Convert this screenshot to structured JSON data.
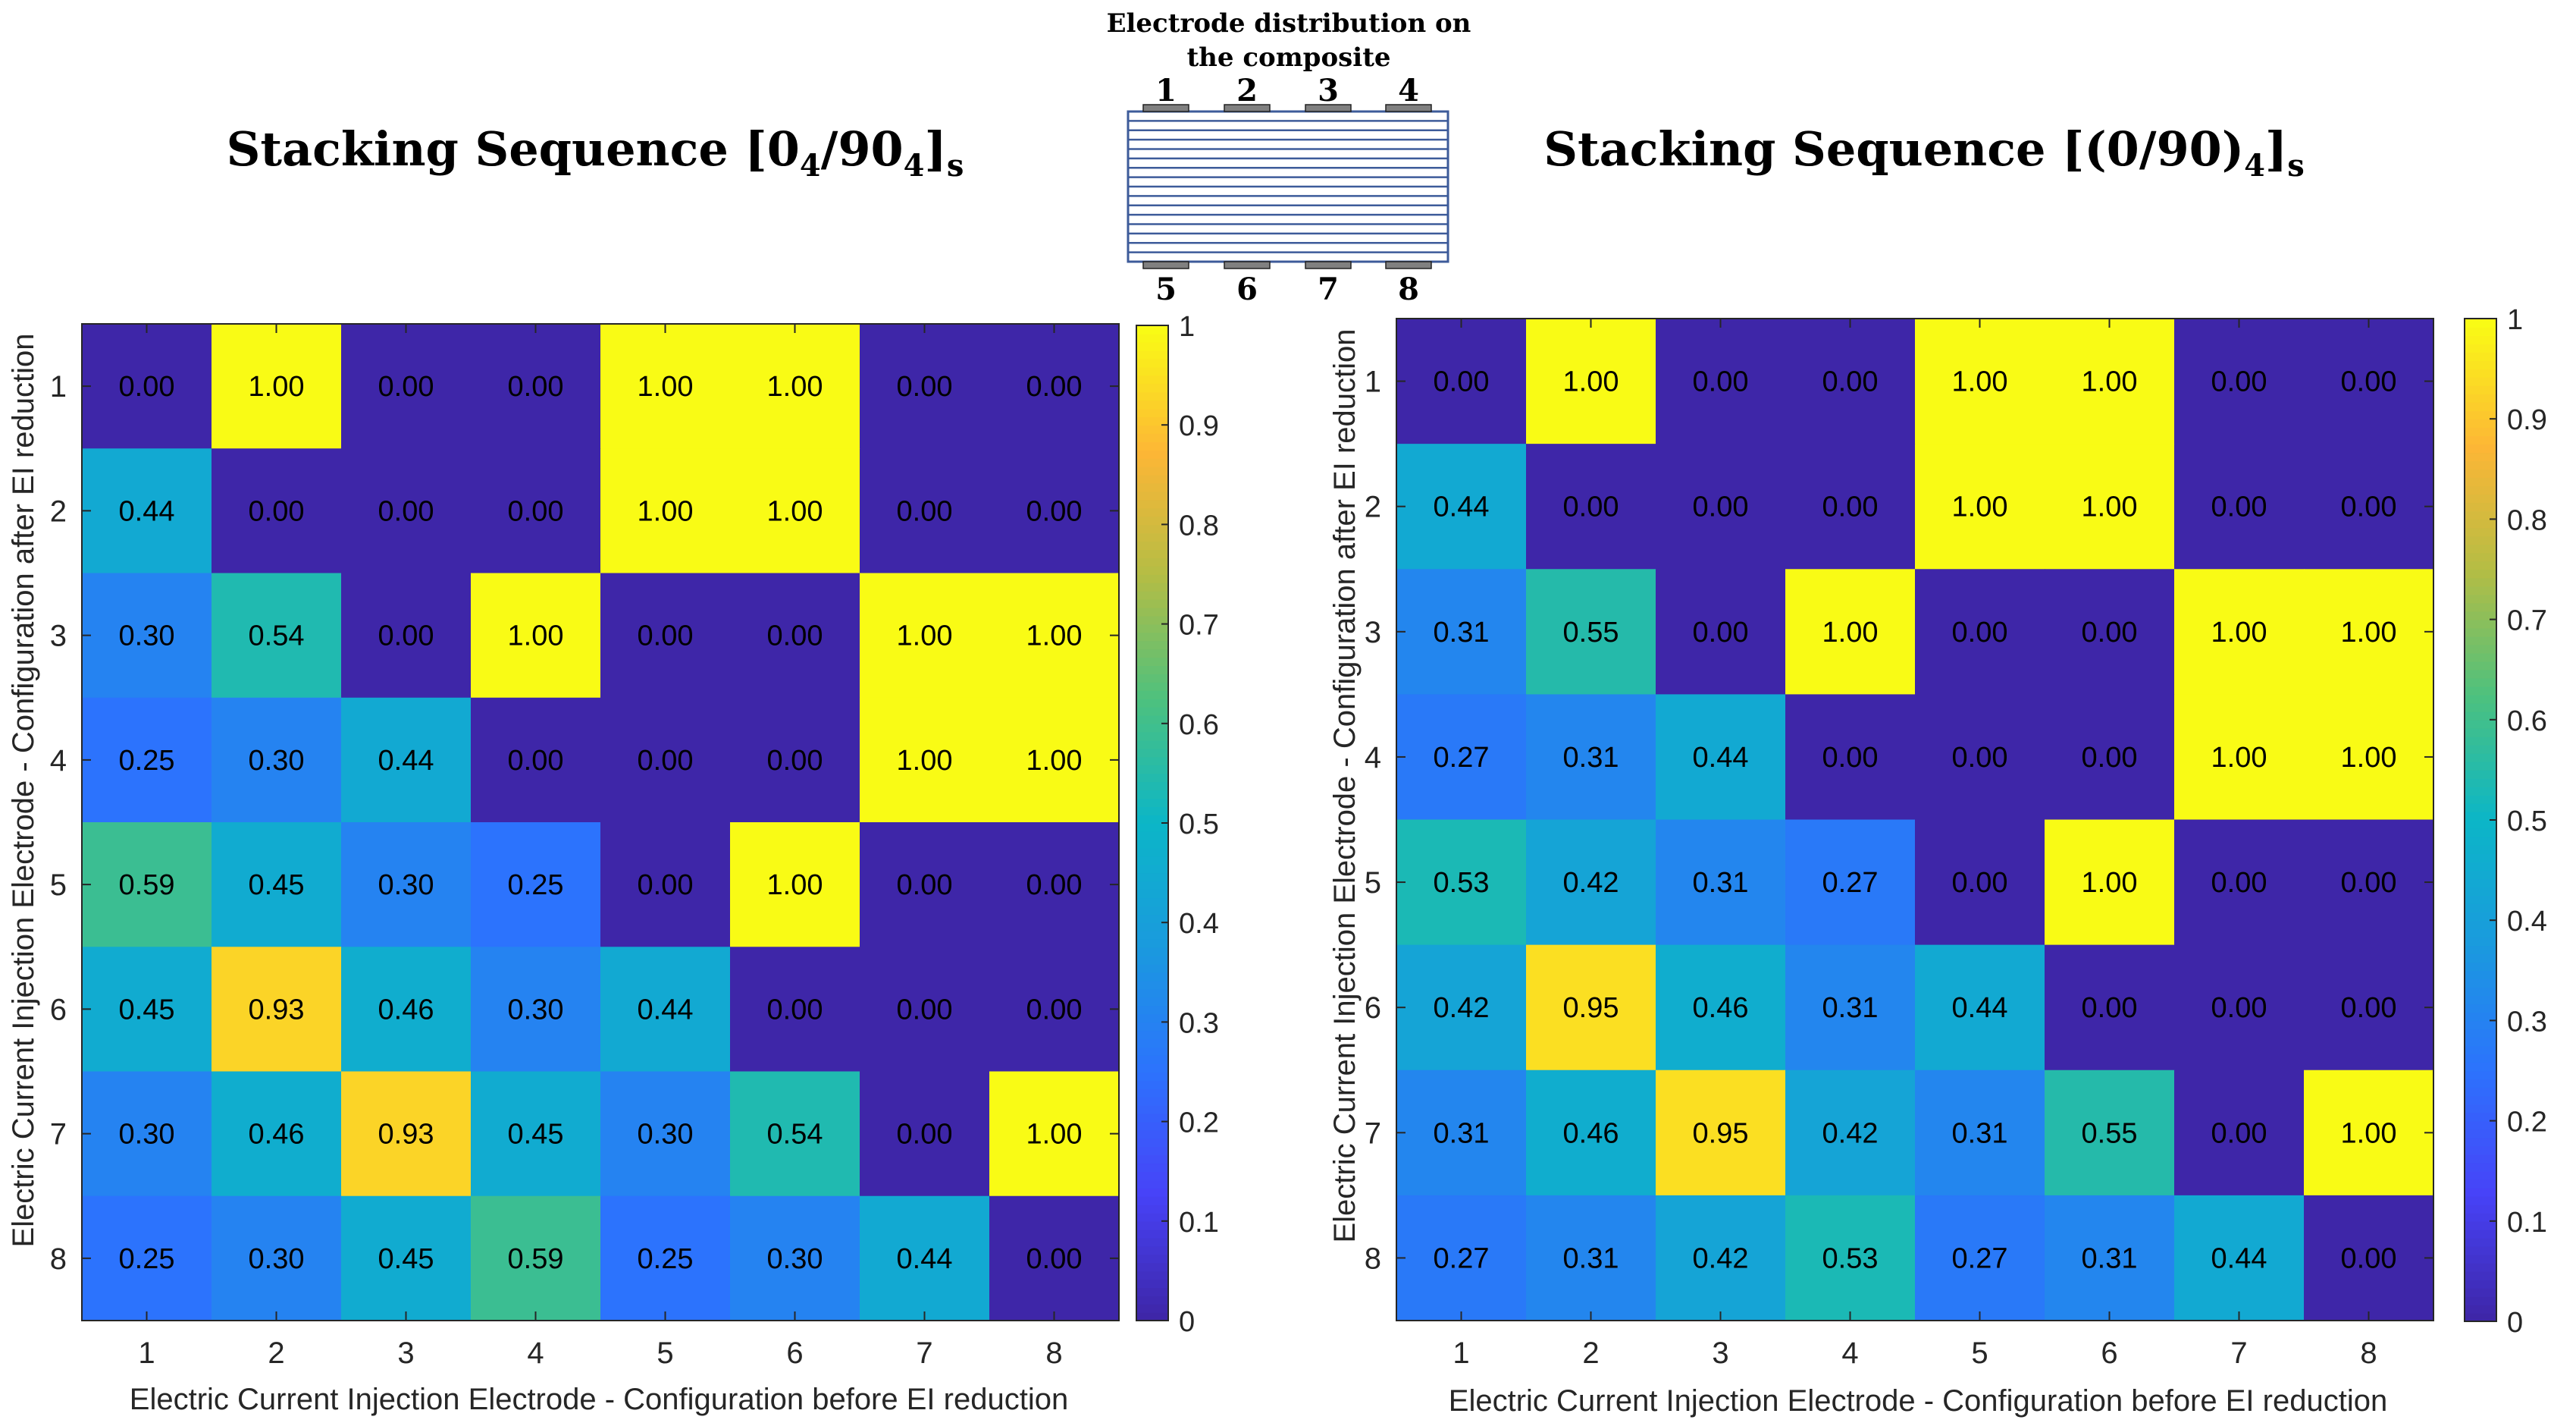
{
  "diagram": {
    "title_line1": "Electrode distribution on",
    "title_line2": "the composite",
    "top_electrodes": [
      "1",
      "2",
      "3",
      "4"
    ],
    "bottom_electrodes": [
      "5",
      "6",
      "7",
      "8"
    ]
  },
  "colors": {
    "colormap": [
      "#3e26a8",
      "#4743f8",
      "#2c73fd",
      "#1a9ade",
      "#0bb6c7",
      "#4dc17e",
      "#b3bd45",
      "#fdb636",
      "#f9fb15"
    ],
    "layer_stroke": "#3d5b9a",
    "electrode_fill": "#808080"
  },
  "chart_data": [
    {
      "type": "heatmap",
      "title_main": "Stacking Sequence [0",
      "title_sub1": "4",
      "title_mid": "/90",
      "title_sub2": "4",
      "title_close": "]",
      "title_sub3": "s",
      "xlabel": "Electric Current Injection Electrode - Configuration before EI reduction",
      "ylabel": "Electric Current Injection Electrode - Configuration after EI reduction",
      "x_categories": [
        "1",
        "2",
        "3",
        "4",
        "5",
        "6",
        "7",
        "8"
      ],
      "y_categories": [
        "1",
        "2",
        "3",
        "4",
        "5",
        "6",
        "7",
        "8"
      ],
      "clim": [
        0,
        1
      ],
      "colorbar_ticks": [
        "0",
        "0.1",
        "0.2",
        "0.3",
        "0.4",
        "0.5",
        "0.6",
        "0.7",
        "0.8",
        "0.9",
        "1"
      ],
      "values": [
        [
          0.0,
          1.0,
          0.0,
          0.0,
          1.0,
          1.0,
          0.0,
          0.0
        ],
        [
          0.44,
          0.0,
          0.0,
          0.0,
          1.0,
          1.0,
          0.0,
          0.0
        ],
        [
          0.3,
          0.54,
          0.0,
          1.0,
          0.0,
          0.0,
          1.0,
          1.0
        ],
        [
          0.25,
          0.3,
          0.44,
          0.0,
          0.0,
          0.0,
          1.0,
          1.0
        ],
        [
          0.59,
          0.45,
          0.3,
          0.25,
          0.0,
          1.0,
          0.0,
          0.0
        ],
        [
          0.45,
          0.93,
          0.46,
          0.3,
          0.44,
          0.0,
          0.0,
          0.0
        ],
        [
          0.3,
          0.46,
          0.93,
          0.45,
          0.3,
          0.54,
          0.0,
          1.0
        ],
        [
          0.25,
          0.3,
          0.45,
          0.59,
          0.25,
          0.3,
          0.44,
          0.0
        ]
      ]
    },
    {
      "type": "heatmap",
      "title_main": "Stacking Sequence [(0/90)",
      "title_sub1": "4",
      "title_mid": "",
      "title_sub2": "",
      "title_close": "]",
      "title_sub3": "s",
      "xlabel": "Electric Current Injection Electrode - Configuration before EI reduction",
      "ylabel": "Electric Current Injection Electrode - Configuration after EI reduction",
      "x_categories": [
        "1",
        "2",
        "3",
        "4",
        "5",
        "6",
        "7",
        "8"
      ],
      "y_categories": [
        "1",
        "2",
        "3",
        "4",
        "5",
        "6",
        "7",
        "8"
      ],
      "clim": [
        0,
        1
      ],
      "colorbar_ticks": [
        "0",
        "0.1",
        "0.2",
        "0.3",
        "0.4",
        "0.5",
        "0.6",
        "0.7",
        "0.8",
        "0.9",
        "1"
      ],
      "values": [
        [
          0.0,
          1.0,
          0.0,
          0.0,
          1.0,
          1.0,
          0.0,
          0.0
        ],
        [
          0.44,
          0.0,
          0.0,
          0.0,
          1.0,
          1.0,
          0.0,
          0.0
        ],
        [
          0.31,
          0.55,
          0.0,
          1.0,
          0.0,
          0.0,
          1.0,
          1.0
        ],
        [
          0.27,
          0.31,
          0.44,
          0.0,
          0.0,
          0.0,
          1.0,
          1.0
        ],
        [
          0.53,
          0.42,
          0.31,
          0.27,
          0.0,
          1.0,
          0.0,
          0.0
        ],
        [
          0.42,
          0.95,
          0.46,
          0.31,
          0.44,
          0.0,
          0.0,
          0.0
        ],
        [
          0.31,
          0.46,
          0.95,
          0.42,
          0.31,
          0.55,
          0.0,
          1.0
        ],
        [
          0.27,
          0.31,
          0.42,
          0.53,
          0.27,
          0.31,
          0.44,
          0.0
        ]
      ]
    }
  ]
}
